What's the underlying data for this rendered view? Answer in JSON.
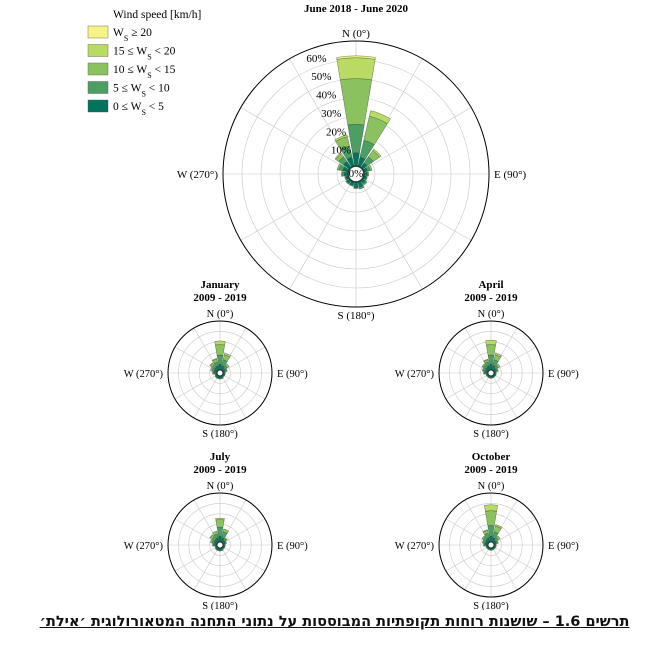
{
  "colors": {
    "band5": "#f5f587",
    "band4": "#b9db63",
    "band3": "#8cc15f",
    "band2": "#4c9e63",
    "band1": "#00745c",
    "grid": "#c8c8c8",
    "axis": "#000000"
  },
  "legend": {
    "title": "Wind speed [km/h]",
    "items": [
      {
        "prefix": "W",
        "sub": "S",
        "suffix": " ≥ 20"
      },
      {
        "prefix": "15 ≤ W",
        "sub": "S",
        "suffix": " < 20"
      },
      {
        "prefix": "10 ≤ W",
        "sub": "S",
        "suffix": " < 15"
      },
      {
        "prefix": "5 ≤ W",
        "sub": "S",
        "suffix": " < 10"
      },
      {
        "prefix": "0 ≤ W",
        "sub": "S",
        "suffix": " < 5"
      }
    ]
  },
  "direction_labels": {
    "n": "N (0°)",
    "e": "E (90°)",
    "s": "S (180°)",
    "w": "W (270°)"
  },
  "caption": "תרשים 1.6 – שושנות רוחות תקופתיות המבוססות על נתוני התחנה המטאורולוגית ׳אילת׳",
  "chart_data": [
    {
      "type": "polar-stacked-bar",
      "title": [
        "June 2018 - June 2020"
      ],
      "rlim": [
        0,
        70
      ],
      "radial_ticks": [
        "0%",
        "10%",
        "20%",
        "30%",
        "40%",
        "50%",
        "60%"
      ],
      "sectors_deg": [
        0,
        22.5,
        45,
        67.5,
        90,
        112.5,
        135,
        157.5,
        180,
        202.5,
        225,
        247.5,
        270,
        292.5,
        315,
        337.5
      ],
      "series": [
        {
          "values": [
            7,
            5,
            3,
            2,
            1.5,
            1.5,
            2,
            3,
            3,
            2,
            2,
            1.5,
            2,
            3,
            4,
            5
          ]
        },
        {
          "values": [
            15,
            9,
            4,
            1.5,
            0.5,
            0.5,
            1,
            1,
            0.5,
            0.5,
            0.5,
            0.5,
            1,
            2,
            3,
            6
          ]
        },
        {
          "values": [
            24,
            13,
            4,
            1,
            0.5,
            0,
            0,
            0,
            0,
            0,
            0,
            0,
            0.5,
            1,
            2,
            5
          ]
        },
        {
          "values": [
            11,
            3,
            1,
            0,
            0,
            0,
            0,
            0,
            0,
            0,
            0,
            0,
            0,
            0,
            0.5,
            1
          ]
        },
        {
          "values": [
            1,
            0,
            0,
            0,
            0,
            0,
            0,
            0,
            0,
            0,
            0,
            0,
            0,
            0,
            0,
            0
          ]
        }
      ]
    },
    {
      "type": "polar-stacked-bar",
      "title": [
        "January",
        "2009 - 2019"
      ],
      "rlim": [
        0,
        70
      ],
      "sectors_deg": [
        0,
        22.5,
        45,
        67.5,
        90,
        112.5,
        135,
        157.5,
        180,
        202.5,
        225,
        247.5,
        270,
        292.5,
        315,
        337.5
      ],
      "series": [
        {
          "values": [
            8,
            6,
            4,
            3,
            2,
            2,
            2,
            3,
            3,
            3,
            3,
            2,
            3,
            4,
            5,
            6
          ]
        },
        {
          "values": [
            12,
            8,
            4,
            2,
            1,
            1,
            1,
            1,
            1,
            1,
            1,
            1,
            2,
            3,
            4,
            5
          ]
        },
        {
          "values": [
            14,
            7,
            3,
            1,
            0,
            0,
            0,
            0,
            0,
            0,
            0,
            0,
            1,
            2,
            3,
            4
          ]
        },
        {
          "values": [
            5,
            2,
            0,
            0,
            0,
            0,
            0,
            0,
            0,
            0,
            0,
            0,
            0,
            0,
            1,
            1
          ]
        },
        {
          "values": [
            0,
            0,
            0,
            0,
            0,
            0,
            0,
            0,
            0,
            0,
            0,
            0,
            0,
            0,
            0,
            0
          ]
        }
      ]
    },
    {
      "type": "polar-stacked-bar",
      "title": [
        "April",
        "2009 - 2019"
      ],
      "rlim": [
        0,
        70
      ],
      "sectors_deg": [
        0,
        22.5,
        45,
        67.5,
        90,
        112.5,
        135,
        157.5,
        180,
        202.5,
        225,
        247.5,
        270,
        292.5,
        315,
        337.5
      ],
      "series": [
        {
          "values": [
            8,
            6,
            4,
            3,
            2,
            2,
            2,
            2,
            2,
            2,
            2,
            2,
            3,
            4,
            5,
            6
          ]
        },
        {
          "values": [
            12,
            8,
            4,
            2,
            1,
            1,
            1,
            1,
            1,
            1,
            1,
            1,
            2,
            3,
            4,
            5
          ]
        },
        {
          "values": [
            14,
            7,
            3,
            1,
            0,
            0,
            0,
            0,
            0,
            0,
            0,
            0,
            1,
            1,
            2,
            3
          ]
        },
        {
          "values": [
            6,
            2,
            0,
            0,
            0,
            0,
            0,
            0,
            0,
            0,
            0,
            0,
            0,
            0,
            0,
            1
          ]
        },
        {
          "values": [
            0,
            0,
            0,
            0,
            0,
            0,
            0,
            0,
            0,
            0,
            0,
            0,
            0,
            0,
            0,
            0
          ]
        }
      ]
    },
    {
      "type": "polar-stacked-bar",
      "title": [
        "July",
        "2009 - 2019"
      ],
      "rlim": [
        0,
        70
      ],
      "sectors_deg": [
        0,
        22.5,
        45,
        67.5,
        90,
        112.5,
        135,
        157.5,
        180,
        202.5,
        225,
        247.5,
        270,
        292.5,
        315,
        337.5
      ],
      "series": [
        {
          "values": [
            8,
            6,
            4,
            3,
            2,
            2,
            2,
            3,
            3,
            3,
            3,
            2,
            3,
            4,
            5,
            6
          ]
        },
        {
          "values": [
            12,
            8,
            3,
            2,
            1,
            1,
            1,
            1,
            1,
            1,
            1,
            1,
            2,
            3,
            4,
            5
          ]
        },
        {
          "values": [
            10,
            4,
            1,
            0,
            0,
            0,
            0,
            0,
            0,
            0,
            0,
            0,
            1,
            2,
            3,
            4
          ]
        },
        {
          "values": [
            2,
            0,
            0,
            0,
            0,
            0,
            0,
            0,
            0,
            0,
            0,
            0,
            0,
            0,
            1,
            0
          ]
        },
        {
          "values": [
            0,
            0,
            0,
            0,
            0,
            0,
            0,
            0,
            0,
            0,
            0,
            0,
            0,
            0,
            0,
            0
          ]
        }
      ]
    },
    {
      "type": "polar-stacked-bar",
      "title": [
        "October",
        "2009 - 2019"
      ],
      "rlim": [
        0,
        70
      ],
      "sectors_deg": [
        0,
        22.5,
        45,
        67.5,
        90,
        112.5,
        135,
        157.5,
        180,
        202.5,
        225,
        247.5,
        270,
        292.5,
        315,
        337.5
      ],
      "series": [
        {
          "values": [
            8,
            6,
            4,
            3,
            2,
            2,
            2,
            2,
            2,
            2,
            2,
            2,
            3,
            4,
            5,
            6
          ]
        },
        {
          "values": [
            14,
            8,
            4,
            2,
            1,
            1,
            1,
            1,
            1,
            1,
            1,
            1,
            2,
            3,
            4,
            6
          ]
        },
        {
          "values": [
            20,
            8,
            3,
            1,
            0,
            0,
            0,
            0,
            0,
            0,
            0,
            0,
            1,
            1,
            2,
            4
          ]
        },
        {
          "values": [
            8,
            2,
            0,
            0,
            0,
            0,
            0,
            0,
            0,
            0,
            0,
            0,
            0,
            0,
            0,
            1
          ]
        },
        {
          "values": [
            0,
            0,
            0,
            0,
            0,
            0,
            0,
            0,
            0,
            0,
            0,
            0,
            0,
            0,
            0,
            0
          ]
        }
      ]
    }
  ]
}
